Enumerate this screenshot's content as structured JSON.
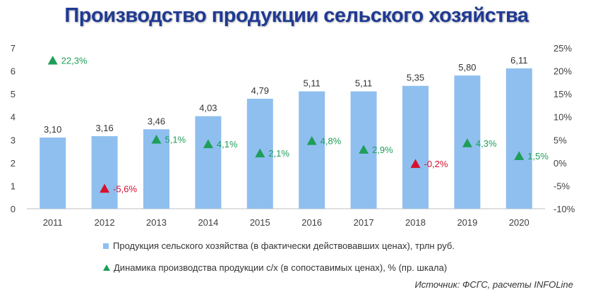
{
  "chart_data": {
    "type": "bar",
    "title": "Производство продукции сельского хозяйства",
    "categories": [
      "2011",
      "2012",
      "2013",
      "2014",
      "2015",
      "2016",
      "2017",
      "2018",
      "2019",
      "2020"
    ],
    "series": [
      {
        "name": "Продукция сельского хозяйства (в фактически действовавших ценах), трлн руб.",
        "type": "bar",
        "axis": "left",
        "values": [
          3.1,
          3.16,
          3.46,
          4.03,
          4.79,
          5.11,
          5.11,
          5.35,
          5.8,
          6.11
        ],
        "labels": [
          "3,10",
          "3,16",
          "3,46",
          "4,03",
          "4,79",
          "5,11",
          "5,11",
          "5,35",
          "5,80",
          "6,11"
        ]
      },
      {
        "name": "Динамика производства продукции с/х (в сопоставимых ценах), % (пр. шкала)",
        "type": "scatter",
        "axis": "right",
        "values": [
          22.3,
          -5.6,
          5.1,
          4.1,
          2.1,
          4.8,
          2.9,
          -0.2,
          4.3,
          1.5
        ],
        "labels": [
          "22,3%",
          "-5,6%",
          "5,1%",
          "4,1%",
          "2,1%",
          "4,8%",
          "2,9%",
          "-0,2%",
          "4,3%",
          "1,5%"
        ]
      }
    ],
    "y_left": {
      "ylim": [
        0,
        7
      ],
      "ticks": [
        "0",
        "1",
        "2",
        "3",
        "4",
        "5",
        "6",
        "7"
      ]
    },
    "y_right": {
      "ylim": [
        -10,
        25
      ],
      "ticks": [
        "-10%",
        "-5%",
        "0%",
        "5%",
        "10%",
        "15%",
        "20%",
        "25%"
      ]
    },
    "grid": false,
    "legend_position": "bottom",
    "source": "Источник: ФСГС, расчеты INFOLine",
    "colors": {
      "bar": "#8fbfef",
      "positive": "#1e9e58",
      "negative": "#d6112f",
      "title": "#1f3a93",
      "axis": "#bfbfbf"
    }
  }
}
